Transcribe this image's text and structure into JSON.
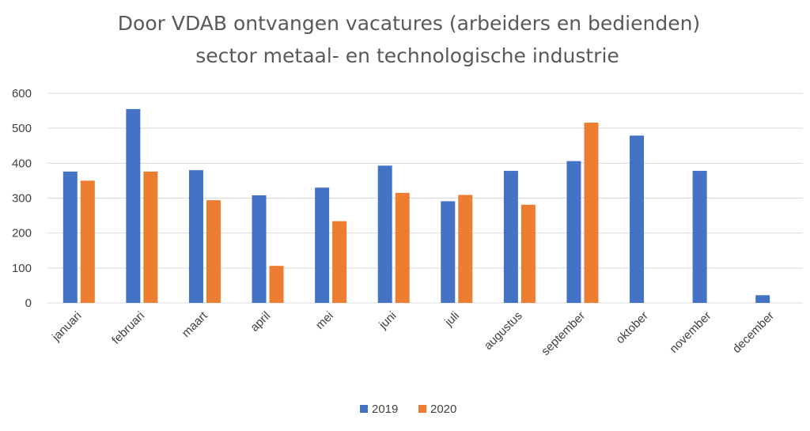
{
  "chart_data": {
    "type": "bar",
    "title": "Door VDAB ontvangen vacatures (arbeiders en bedienden)",
    "subtitle": "sector metaal- en technologische industrie",
    "xlabel": "",
    "ylabel": "",
    "ylim": [
      0,
      600
    ],
    "yticks": [
      "0",
      "100",
      "200",
      "300",
      "400",
      "500",
      "600"
    ],
    "grid": true,
    "legend_position": "bottom",
    "categories": [
      "januari",
      "februari",
      "maart",
      "april",
      "mei",
      "juni",
      "juli",
      "augustus",
      "september",
      "oktober",
      "november",
      "december"
    ],
    "series": [
      {
        "name": "2019",
        "color": "#4472c4",
        "values": [
          376,
          555,
          380,
          308,
          330,
          393,
          291,
          378,
          406,
          479,
          378,
          22
        ]
      },
      {
        "name": "2020",
        "color": "#ed7d31",
        "values": [
          350,
          376,
          294,
          106,
          234,
          315,
          309,
          281,
          516,
          null,
          null,
          null
        ]
      }
    ]
  }
}
